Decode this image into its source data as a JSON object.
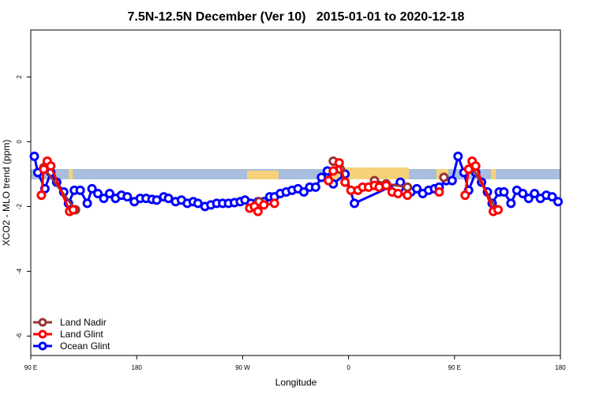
{
  "chart_data": {
    "type": "line",
    "title": "7.5N-12.5N December (Ver 10)   2015-01-01 to 2020-12-18",
    "xlabel": "Longitude",
    "ylabel": "XCO2 - MLO trend (ppm)",
    "xlim": [
      90,
      540
    ],
    "xticks": [
      {
        "value": 90,
        "label": "90 E"
      },
      {
        "value": 180,
        "label": "180"
      },
      {
        "value": 270,
        "label": "90 W"
      },
      {
        "value": 360,
        "label": "0"
      },
      {
        "value": 450,
        "label": "90 E"
      },
      {
        "value": 540,
        "label": "180"
      }
    ],
    "ylim": [
      -6.6,
      3.45
    ],
    "yticks": [
      -6,
      -4,
      -2,
      0,
      2
    ],
    "legend": "bottom-left",
    "series": [
      {
        "name": "Land Nadir",
        "color": "#993333",
        "x": [
          101,
          128,
          null,
          284,
          null,
          347,
          353,
          null,
          382,
          392,
          410,
          null,
          441,
          null,
          465,
          486
        ],
        "values": [
          -0.8,
          -2.1,
          null,
          -1.85,
          null,
          -0.6,
          -0.85,
          null,
          -1.2,
          -1.3,
          -1.4,
          null,
          -1.1,
          null,
          -0.8,
          -2.1
        ]
      },
      {
        "name": "Land Glint",
        "color": "#ff0000",
        "x": [
          99,
          101,
          104,
          107,
          123,
          126,
          null,
          276,
          280,
          283,
          288,
          297,
          null,
          343,
          347,
          352,
          357,
          362,
          368,
          372,
          377,
          382,
          386,
          392,
          397,
          402,
          410,
          null,
          437,
          null,
          459,
          462,
          465,
          468,
          483,
          487
        ],
        "values": [
          -1.65,
          -0.85,
          -0.6,
          -0.75,
          -2.15,
          -2.1,
          null,
          -2.05,
          -2.0,
          -2.15,
          -1.95,
          -1.9,
          null,
          -1.2,
          -0.9,
          -0.65,
          -1.25,
          -1.5,
          -1.5,
          -1.4,
          -1.4,
          -1.35,
          -1.4,
          -1.35,
          -1.55,
          -1.6,
          -1.65,
          null,
          -1.55,
          null,
          -1.65,
          -0.85,
          -0.6,
          -0.75,
          -2.15,
          -2.1
        ]
      },
      {
        "name": "Ocean Glint",
        "color": "#0000ff",
        "x": [
          93,
          96,
          102,
          107,
          112,
          118,
          122,
          127,
          132,
          138,
          142,
          147,
          152,
          157,
          162,
          167,
          172,
          178,
          183,
          188,
          193,
          197,
          203,
          207,
          213,
          218,
          223,
          228,
          232,
          238,
          243,
          248,
          253,
          258,
          263,
          268,
          272,
          277,
          283,
          288,
          293,
          297,
          302,
          307,
          312,
          317,
          322,
          327,
          332,
          337,
          342,
          347,
          357,
          365,
          404,
          408,
          413,
          418,
          423,
          428,
          433,
          437,
          443,
          448,
          453,
          458,
          462,
          468,
          473,
          478,
          482,
          488,
          492,
          498,
          503,
          508,
          513,
          518,
          523,
          528,
          533,
          538
        ],
        "values": [
          -0.45,
          -0.95,
          -1.45,
          -0.95,
          -1.25,
          -1.55,
          -1.9,
          -1.5,
          -1.5,
          -1.9,
          -1.45,
          -1.6,
          -1.75,
          -1.6,
          -1.75,
          -1.65,
          -1.7,
          -1.85,
          -1.75,
          -1.75,
          -1.78,
          -1.8,
          -1.7,
          -1.75,
          -1.85,
          -1.8,
          -1.9,
          -1.85,
          -1.9,
          -2.0,
          -1.95,
          -1.9,
          -1.9,
          -1.9,
          -1.88,
          -1.85,
          -1.8,
          -1.9,
          -1.85,
          -1.85,
          -1.7,
          -1.7,
          -1.6,
          -1.55,
          -1.5,
          -1.45,
          -1.55,
          -1.4,
          -1.4,
          -1.1,
          -0.9,
          -1.3,
          -1.0,
          -1.9,
          -1.25,
          -1.55,
          -1.55,
          -1.45,
          -1.6,
          -1.5,
          -1.45,
          -1.4,
          -1.2,
          -1.2,
          -0.45,
          -0.95,
          -1.5,
          -0.95,
          -1.25,
          -1.55,
          -1.9,
          -1.55,
          -1.55,
          -1.9,
          -1.5,
          -1.6,
          -1.75,
          -1.6,
          -1.75,
          -1.65,
          -1.7,
          -1.85
        ]
      }
    ]
  }
}
